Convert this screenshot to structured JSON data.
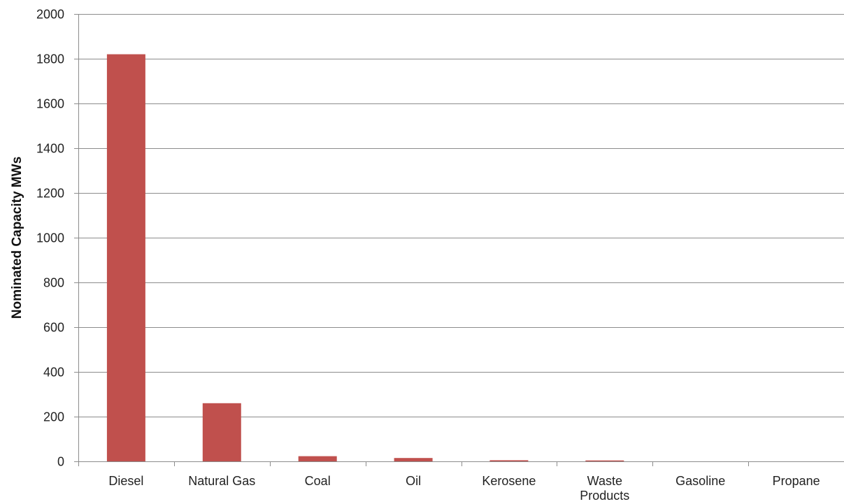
{
  "chart_data": {
    "type": "bar",
    "title": "",
    "xlabel": "",
    "ylabel": "Nominated Capacity MWs",
    "ylim": [
      0,
      2000
    ],
    "yticks": [
      0,
      200,
      400,
      600,
      800,
      1000,
      1200,
      1400,
      1600,
      1800,
      2000
    ],
    "grid": true,
    "legend": "none",
    "categories": [
      "Diesel",
      "Natural Gas",
      "Coal",
      "Oil",
      "Kerosene",
      "Waste Products",
      "Gasoline",
      "Propane"
    ],
    "category_lines": [
      [
        "Diesel"
      ],
      [
        "Natural Gas"
      ],
      [
        "Coal"
      ],
      [
        "Oil"
      ],
      [
        "Kerosene"
      ],
      [
        "Waste",
        "Products"
      ],
      [
        "Gasoline"
      ],
      [
        "Propane"
      ]
    ],
    "values": [
      1820,
      260,
      23,
      15,
      5,
      4,
      0,
      0
    ],
    "colors": {
      "bar": "#C0504D",
      "grid": "#8C8C8C",
      "axis": "#8C8C8C"
    }
  }
}
